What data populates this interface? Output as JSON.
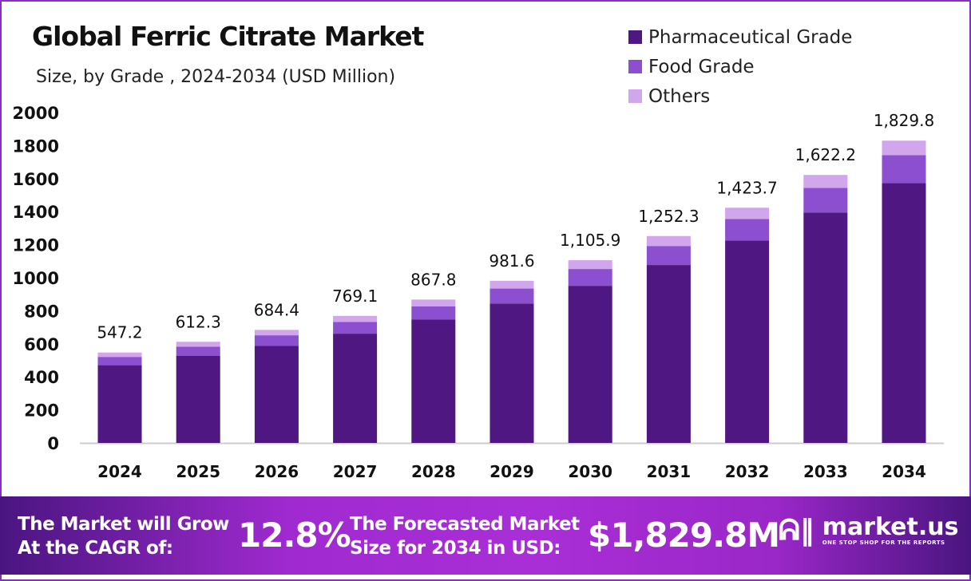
{
  "chart_data": {
    "type": "bar",
    "stacked": true,
    "title": "Global Ferric Citrate Market",
    "subtitle": "Size, by Grade , 2024-2034 (USD Million)",
    "categories": [
      "2024",
      "2025",
      "2026",
      "2027",
      "2028",
      "2029",
      "2030",
      "2031",
      "2032",
      "2033",
      "2034"
    ],
    "series": [
      {
        "name": "Pharmaceutical Grade",
        "color": "#4f1782",
        "values": [
          470.6,
          526.6,
          588.6,
          661.4,
          746.3,
          844.2,
          951.1,
          1077.0,
          1224.4,
          1395.1,
          1573.6
        ]
      },
      {
        "name": "Food Grade",
        "color": "#8b4fcf",
        "values": [
          50.3,
          56.3,
          63.0,
          70.8,
          79.8,
          90.3,
          101.7,
          115.2,
          131.0,
          149.2,
          168.3
        ]
      },
      {
        "name": "Others",
        "color": "#d1a6ec",
        "values": [
          26.3,
          29.4,
          32.8,
          36.9,
          41.7,
          47.1,
          53.1,
          60.1,
          68.3,
          77.9,
          87.9
        ]
      }
    ],
    "totals": [
      "547.2",
      "612.3",
      "684.4",
      "769.1",
      "867.8",
      "981.6",
      "1,105.9",
      "1,252.3",
      "1,423.7",
      "1,622.2",
      "1,829.8"
    ],
    "ylim": [
      0,
      2000
    ],
    "yticks": [
      0,
      200,
      400,
      600,
      800,
      1000,
      1200,
      1400,
      1600,
      1800,
      2000
    ],
    "grid": false,
    "legend_position": "top-right"
  },
  "banner": {
    "cagr_label_1": "The Market will Grow",
    "cagr_label_2": "At the CAGR of:",
    "cagr_value": "12.8%",
    "forecast_label_1": "The Forecasted Market",
    "forecast_label_2": "Size for 2034 in USD:",
    "forecast_value": "$1,829.8M",
    "logo_name": "market.us",
    "logo_tagline": "ONE STOP SHOP FOR THE REPORTS"
  }
}
